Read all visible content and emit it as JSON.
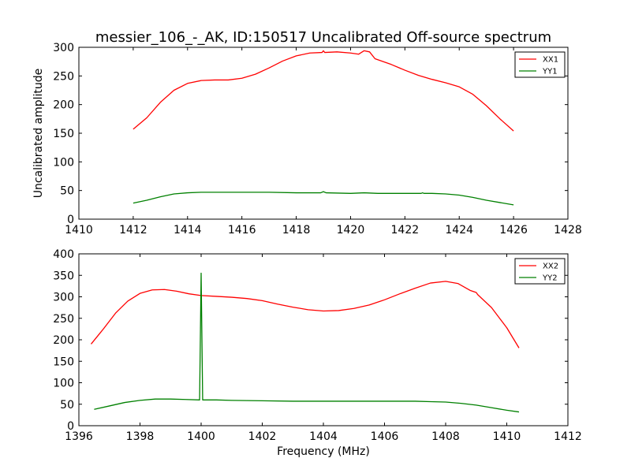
{
  "title": "messier_106_-_AK, ID:150517 Uncalibrated Off-source spectrum",
  "chart_data": [
    {
      "type": "line",
      "ylabel": "Uncalibrated amplitude",
      "xlabel": "",
      "xlim": [
        1410,
        1428
      ],
      "ylim": [
        0,
        300
      ],
      "xticks": [
        "1410",
        "1412",
        "1414",
        "1416",
        "1418",
        "1420",
        "1422",
        "1424",
        "1426",
        "1428"
      ],
      "yticks": [
        "0",
        "50",
        "100",
        "150",
        "200",
        "250",
        "300"
      ],
      "legend_position": "top-right",
      "series": [
        {
          "name": "XX1",
          "color": "#ff0000",
          "points": [
            [
              1412.0,
              157
            ],
            [
              1412.5,
              177
            ],
            [
              1413.0,
              204
            ],
            [
              1413.5,
              225
            ],
            [
              1414.0,
              237
            ],
            [
              1414.5,
              242
            ],
            [
              1415.0,
              243
            ],
            [
              1415.5,
              243
            ],
            [
              1416.0,
              246
            ],
            [
              1416.5,
              253
            ],
            [
              1417.0,
              264
            ],
            [
              1417.5,
              276
            ],
            [
              1418.0,
              285
            ],
            [
              1418.5,
              290
            ],
            [
              1418.95,
              291
            ],
            [
              1419.0,
              294
            ],
            [
              1419.05,
              291
            ],
            [
              1419.5,
              292
            ],
            [
              1420.0,
              290
            ],
            [
              1420.3,
              288
            ],
            [
              1420.5,
              294
            ],
            [
              1420.7,
              292
            ],
            [
              1420.9,
              280
            ],
            [
              1421.5,
              270
            ],
            [
              1422.0,
              260
            ],
            [
              1422.5,
              251
            ],
            [
              1423.0,
              244
            ],
            [
              1423.5,
              238
            ],
            [
              1424.0,
              231
            ],
            [
              1424.5,
              218
            ],
            [
              1425.0,
              198
            ],
            [
              1425.5,
              175
            ],
            [
              1426.0,
              154
            ]
          ]
        },
        {
          "name": "YY1",
          "color": "#008000",
          "points": [
            [
              1412.0,
              28
            ],
            [
              1412.5,
              33
            ],
            [
              1413.0,
              39
            ],
            [
              1413.5,
              44
            ],
            [
              1414.0,
              46
            ],
            [
              1414.5,
              47
            ],
            [
              1415.0,
              47
            ],
            [
              1416.0,
              47
            ],
            [
              1417.0,
              47
            ],
            [
              1418.0,
              46
            ],
            [
              1418.9,
              46
            ],
            [
              1419.0,
              48
            ],
            [
              1419.1,
              46
            ],
            [
              1420.0,
              45
            ],
            [
              1420.5,
              46
            ],
            [
              1421.0,
              45
            ],
            [
              1422.0,
              45
            ],
            [
              1422.6,
              45
            ],
            [
              1422.65,
              46
            ],
            [
              1422.7,
              45
            ],
            [
              1423.0,
              45
            ],
            [
              1423.5,
              44
            ],
            [
              1424.0,
              42
            ],
            [
              1424.5,
              38
            ],
            [
              1425.0,
              33
            ],
            [
              1425.5,
              29
            ],
            [
              1426.0,
              25
            ]
          ]
        }
      ]
    },
    {
      "type": "line",
      "ylabel": "",
      "xlabel": "Frequency (MHz)",
      "xlim": [
        1396,
        1412
      ],
      "ylim": [
        0,
        400
      ],
      "xticks": [
        "1396",
        "1398",
        "1400",
        "1402",
        "1404",
        "1406",
        "1408",
        "1410",
        "1412"
      ],
      "yticks": [
        "0",
        "50",
        "100",
        "150",
        "200",
        "250",
        "300",
        "350",
        "400"
      ],
      "legend_position": "top-right",
      "series": [
        {
          "name": "XX2",
          "color": "#ff0000",
          "points": [
            [
              1396.4,
              190
            ],
            [
              1396.8,
              225
            ],
            [
              1397.2,
              262
            ],
            [
              1397.6,
              290
            ],
            [
              1398.0,
              308
            ],
            [
              1398.4,
              316
            ],
            [
              1398.8,
              317
            ],
            [
              1399.2,
              313
            ],
            [
              1399.6,
              307
            ],
            [
              1400.0,
              303
            ],
            [
              1400.5,
              301
            ],
            [
              1401.0,
              299
            ],
            [
              1401.5,
              296
            ],
            [
              1402.0,
              291
            ],
            [
              1402.5,
              283
            ],
            [
              1403.0,
              276
            ],
            [
              1403.5,
              270
            ],
            [
              1404.0,
              267
            ],
            [
              1404.5,
              268
            ],
            [
              1405.0,
              273
            ],
            [
              1405.5,
              281
            ],
            [
              1406.0,
              293
            ],
            [
              1406.5,
              307
            ],
            [
              1407.0,
              320
            ],
            [
              1407.5,
              332
            ],
            [
              1408.0,
              336
            ],
            [
              1408.4,
              331
            ],
            [
              1408.8,
              315
            ],
            [
              1409.0,
              310
            ],
            [
              1409.05,
              305
            ],
            [
              1409.5,
              275
            ],
            [
              1410.0,
              228
            ],
            [
              1410.4,
              181
            ]
          ]
        },
        {
          "name": "YY2",
          "color": "#008000",
          "points": [
            [
              1396.5,
              38
            ],
            [
              1397.0,
              46
            ],
            [
              1397.5,
              54
            ],
            [
              1398.0,
              59
            ],
            [
              1398.5,
              62
            ],
            [
              1399.0,
              62
            ],
            [
              1399.5,
              61
            ],
            [
              1399.95,
              60
            ],
            [
              1400.0,
              355
            ],
            [
              1400.05,
              60
            ],
            [
              1400.5,
              60
            ],
            [
              1401.0,
              59
            ],
            [
              1402.0,
              58
            ],
            [
              1403.0,
              57
            ],
            [
              1404.0,
              57
            ],
            [
              1405.0,
              57
            ],
            [
              1406.0,
              57
            ],
            [
              1407.0,
              57
            ],
            [
              1407.5,
              56
            ],
            [
              1408.0,
              55
            ],
            [
              1408.5,
              52
            ],
            [
              1409.0,
              48
            ],
            [
              1409.5,
              42
            ],
            [
              1410.0,
              36
            ],
            [
              1410.4,
              32
            ]
          ]
        }
      ]
    }
  ]
}
